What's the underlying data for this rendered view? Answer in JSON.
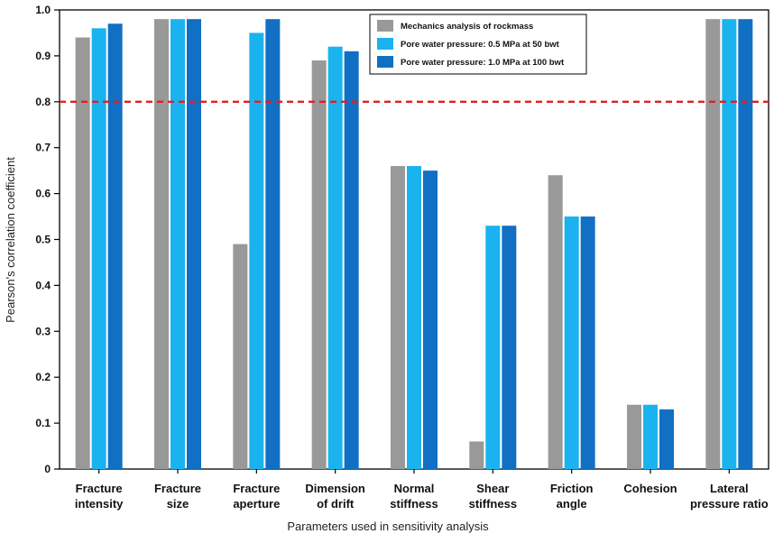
{
  "chart_data": {
    "type": "bar",
    "xlabel": "Parameters used in sensitivity analysis",
    "ylabel": "Pearson's correlation coefficient",
    "ylim": [
      0,
      1.0
    ],
    "yticks": [
      "0",
      "0.1",
      "0.2",
      "0.3",
      "0.4",
      "0.5",
      "0.6",
      "0.7",
      "0.8",
      "0.9",
      "1.0"
    ],
    "categories": [
      [
        "Fracture",
        "intensity"
      ],
      [
        "Fracture",
        "size"
      ],
      [
        "Fracture",
        "aperture"
      ],
      [
        "Dimension",
        "of drift"
      ],
      [
        "Normal",
        "stiffness"
      ],
      [
        "Shear",
        "stiffness"
      ],
      [
        "Friction",
        "angle"
      ],
      [
        "Cohesion"
      ],
      [
        "Lateral",
        "pressure ratio"
      ]
    ],
    "series": [
      {
        "name": "Mechanics analysis of rockmass",
        "color": "#999999",
        "values": [
          0.94,
          0.98,
          0.49,
          0.89,
          0.66,
          0.06,
          0.64,
          0.14,
          0.98
        ]
      },
      {
        "name": "Pore water pressure: 0.5 MPa at 50 bwt",
        "color": "#1ab3ef",
        "values": [
          0.96,
          0.98,
          0.95,
          0.92,
          0.66,
          0.53,
          0.55,
          0.14,
          0.98
        ]
      },
      {
        "name": "Pore water pressure: 1.0 MPa at 100 bwt",
        "color": "#1170c4",
        "values": [
          0.97,
          0.98,
          0.98,
          0.91,
          0.65,
          0.53,
          0.55,
          0.13,
          0.98
        ]
      }
    ],
    "reference_line": {
      "value": 0.8,
      "color": "#e02020",
      "style": "dashed"
    },
    "legend_placement": "top-right",
    "grid": false
  }
}
